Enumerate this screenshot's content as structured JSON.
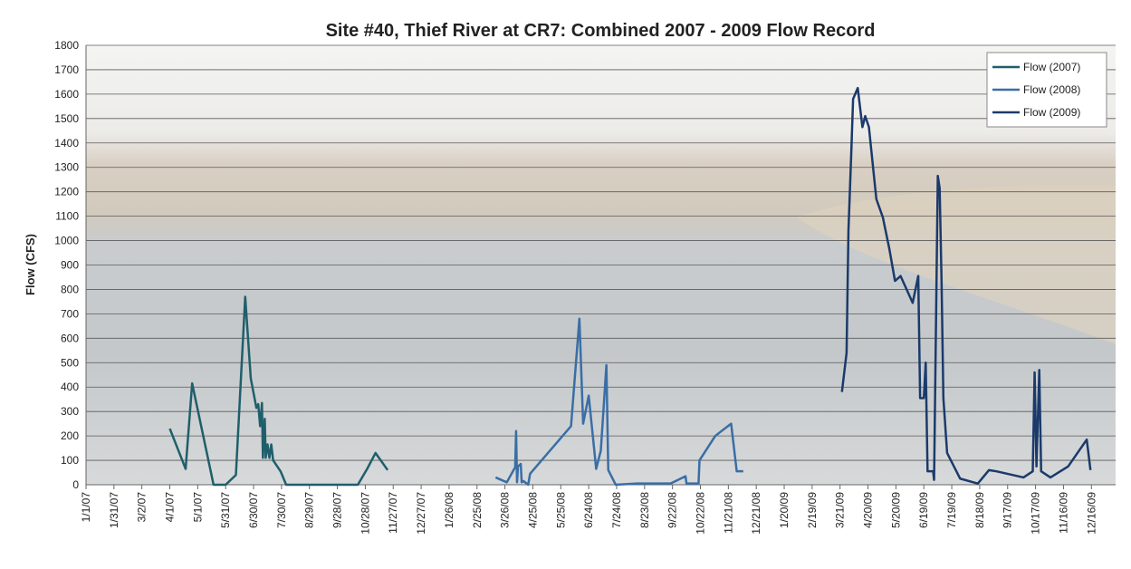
{
  "chart_data": {
    "type": "line",
    "title": "Site #40, Thief River at CR7:  Combined 2007 - 2009 Flow Record",
    "y_label": "Flow (CFS)",
    "xlim": [
      "1/1/07",
      "1/11/10"
    ],
    "xticks": [
      "1/1/07",
      "1/31/07",
      "3/2/07",
      "4/1/07",
      "5/1/07",
      "5/31/07",
      "6/30/07",
      "7/30/07",
      "8/29/07",
      "9/28/07",
      "10/28/07",
      "11/27/07",
      "12/27/07",
      "1/26/08",
      "2/25/08",
      "3/26/08",
      "4/25/08",
      "5/25/08",
      "6/24/08",
      "7/24/08",
      "8/23/08",
      "9/22/08",
      "10/22/08",
      "11/21/08",
      "12/21/08",
      "1/20/09",
      "2/19/09",
      "3/21/09",
      "4/20/09",
      "5/20/09",
      "6/19/09",
      "7/19/09",
      "8/18/09",
      "9/17/09",
      "10/17/09",
      "11/16/09",
      "12/16/09"
    ],
    "ylim": [
      0,
      1800
    ],
    "yticks": [
      0,
      100,
      200,
      300,
      400,
      500,
      600,
      700,
      800,
      900,
      1000,
      1100,
      1200,
      1300,
      1400,
      1500,
      1600,
      1700,
      1800
    ],
    "grid": true,
    "legend": "top-right",
    "series": [
      {
        "name": "Flow (2007)",
        "color": "#1f5f6b",
        "x": [
          "4/1/07",
          "4/18/07",
          "4/25/07",
          "5/18/07",
          "5/31/07",
          "6/11/07",
          "6/21/07",
          "6/27/07",
          "7/3/07",
          "7/5/07",
          "7/7/07",
          "7/9/07",
          "7/10/07",
          "7/12/07",
          "7/13/07",
          "7/15/07",
          "7/17/07",
          "7/19/07",
          "7/21/07",
          "7/29/07",
          "8/4/07",
          "10/20/07",
          "10/30/07",
          "11/8/07",
          "11/21/07"
        ],
        "values": [
          230,
          65,
          415,
          0,
          0,
          40,
          770,
          435,
          315,
          330,
          240,
          335,
          110,
          270,
          110,
          165,
          110,
          165,
          100,
          55,
          0,
          0,
          65,
          130,
          60
        ]
      },
      {
        "name": "Flow (2008)",
        "color": "#3a6ea5",
        "x": [
          "3/16/08",
          "3/28/08",
          "4/5/08",
          "4/6/08",
          "4/7/08",
          "4/8/08",
          "4/9/08",
          "4/12/08",
          "4/13/08",
          "4/15/08",
          "4/20/08",
          "4/22/08",
          "6/5/08",
          "6/14/08",
          "6/18/08",
          "6/24/08",
          "7/2/08",
          "7/7/08",
          "7/13/08",
          "7/15/08",
          "7/23/08",
          "8/15/08",
          "9/20/08",
          "10/6/08",
          "10/7/08",
          "10/20/08",
          "10/21/08",
          "11/7/08",
          "11/12/08",
          "11/24/08",
          "11/30/08",
          "12/7/08"
        ],
        "values": [
          30,
          10,
          65,
          70,
          220,
          10,
          75,
          85,
          10,
          15,
          0,
          45,
          240,
          680,
          250,
          365,
          65,
          140,
          490,
          60,
          0,
          5,
          5,
          35,
          5,
          5,
          100,
          200,
          215,
          250,
          55,
          55
        ]
      },
      {
        "name": "Flow (2009)",
        "color": "#1b3a6b",
        "x": [
          "3/23/09",
          "3/28/09",
          "3/30/09",
          "4/2/09",
          "4/4/09",
          "4/9/09",
          "4/14/09",
          "4/17/09",
          "4/21/09",
          "4/26/09",
          "4/29/09",
          "5/6/09",
          "5/13/09",
          "5/19/09",
          "5/25/09",
          "6/7/09",
          "6/13/09",
          "6/15/09",
          "6/19/09",
          "6/21/09",
          "6/23/09",
          "6/29/09",
          "6/30/09",
          "7/4/09",
          "7/6/09",
          "7/8/09",
          "7/10/09",
          "7/14/09",
          "7/28/09",
          "8/16/09",
          "8/28/09",
          "9/5/09",
          "10/4/09",
          "10/14/09",
          "10/16/09",
          "10/18/09",
          "10/21/09",
          "10/23/09",
          "11/2/09",
          "11/21/09",
          "12/11/09",
          "12/15/09"
        ],
        "values": [
          380,
          540,
          1040,
          1355,
          1580,
          1625,
          1465,
          1510,
          1465,
          1280,
          1170,
          1095,
          965,
          835,
          855,
          745,
          855,
          355,
          355,
          500,
          55,
          55,
          20,
          1265,
          1215,
          840,
          355,
          130,
          25,
          5,
          60,
          55,
          30,
          55,
          460,
          75,
          470,
          55,
          30,
          75,
          185,
          60
        ]
      }
    ]
  }
}
